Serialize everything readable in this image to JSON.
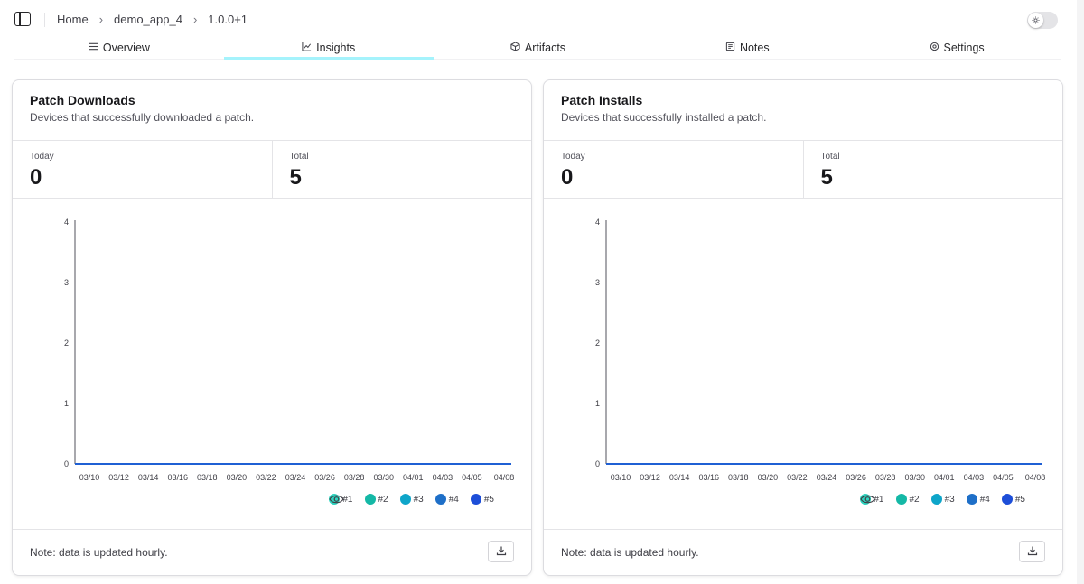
{
  "breadcrumb": {
    "home": "Home",
    "app": "demo_app_4",
    "release": "1.0.0+1"
  },
  "tabs": [
    {
      "label": "Overview",
      "icon": "list-icon",
      "active": false
    },
    {
      "label": "Insights",
      "icon": "chart-line-icon",
      "active": true
    },
    {
      "label": "Artifacts",
      "icon": "package-icon",
      "active": false
    },
    {
      "label": "Notes",
      "icon": "notes-icon",
      "active": false
    },
    {
      "label": "Settings",
      "icon": "gear-icon",
      "active": false
    }
  ],
  "cards": {
    "downloads": {
      "title": "Patch Downloads",
      "subtitle": "Devices that successfully downloaded a patch.",
      "today_label": "Today",
      "today_value": "0",
      "total_label": "Total",
      "total_value": "5",
      "note": "Note: data is updated hourly."
    },
    "installs": {
      "title": "Patch Installs",
      "subtitle": "Devices that successfully installed a patch.",
      "today_label": "Today",
      "today_value": "0",
      "total_label": "Total",
      "total_value": "5",
      "note": "Note: data is updated hourly."
    }
  },
  "legend": [
    {
      "label": "#1",
      "color": "#2dd4bf"
    },
    {
      "label": "#2",
      "color": "#14b8a6"
    },
    {
      "label": "#3",
      "color": "#0ea5c9"
    },
    {
      "label": "#4",
      "color": "#1e6fc8"
    },
    {
      "label": "#5",
      "color": "#1d4ed8"
    }
  ],
  "chart_data": [
    {
      "type": "line",
      "title": "Patch Downloads",
      "x": [
        "03/10",
        "03/12",
        "03/14",
        "03/16",
        "03/18",
        "03/20",
        "03/22",
        "03/24",
        "03/26",
        "03/28",
        "03/30",
        "04/01",
        "04/03",
        "04/05",
        "04/08"
      ],
      "series": [
        {
          "name": "#1",
          "values": [
            0,
            0,
            0,
            0,
            0,
            0,
            0,
            0,
            0,
            0,
            0,
            0,
            0,
            0,
            0
          ]
        },
        {
          "name": "#2",
          "values": [
            0,
            0,
            0,
            0,
            0,
            0,
            0,
            0,
            0,
            0,
            0,
            0,
            0,
            0,
            0
          ]
        },
        {
          "name": "#3",
          "values": [
            0,
            0,
            0,
            0,
            0,
            0,
            0,
            0,
            0,
            0,
            0,
            0,
            0,
            0,
            0
          ]
        },
        {
          "name": "#4",
          "values": [
            0,
            0,
            0,
            0,
            0,
            0,
            0,
            0,
            0,
            0,
            0,
            0,
            0,
            0,
            0
          ]
        },
        {
          "name": "#5",
          "values": [
            0,
            0,
            0,
            0,
            0,
            0,
            0,
            0,
            0,
            0,
            0,
            0,
            0,
            0,
            0
          ]
        }
      ],
      "yticks": [
        0,
        1,
        2,
        3,
        4
      ],
      "ylim": [
        0,
        4
      ],
      "grid": false,
      "legend": "bottom-right"
    },
    {
      "type": "line",
      "title": "Patch Installs",
      "x": [
        "03/10",
        "03/12",
        "03/14",
        "03/16",
        "03/18",
        "03/20",
        "03/22",
        "03/24",
        "03/26",
        "03/28",
        "03/30",
        "04/01",
        "04/03",
        "04/05",
        "04/08"
      ],
      "series": [
        {
          "name": "#1",
          "values": [
            0,
            0,
            0,
            0,
            0,
            0,
            0,
            0,
            0,
            0,
            0,
            0,
            0,
            0,
            0
          ]
        },
        {
          "name": "#2",
          "values": [
            0,
            0,
            0,
            0,
            0,
            0,
            0,
            0,
            0,
            0,
            0,
            0,
            0,
            0,
            0
          ]
        },
        {
          "name": "#3",
          "values": [
            0,
            0,
            0,
            0,
            0,
            0,
            0,
            0,
            0,
            0,
            0,
            0,
            0,
            0,
            0
          ]
        },
        {
          "name": "#4",
          "values": [
            0,
            0,
            0,
            0,
            0,
            0,
            0,
            0,
            0,
            0,
            0,
            0,
            0,
            0,
            0
          ]
        },
        {
          "name": "#5",
          "values": [
            0,
            0,
            0,
            0,
            0,
            0,
            0,
            0,
            0,
            0,
            0,
            0,
            0,
            0,
            0
          ]
        }
      ],
      "yticks": [
        0,
        1,
        2,
        3,
        4
      ],
      "ylim": [
        0,
        4
      ],
      "grid": false,
      "legend": "bottom-right"
    }
  ]
}
